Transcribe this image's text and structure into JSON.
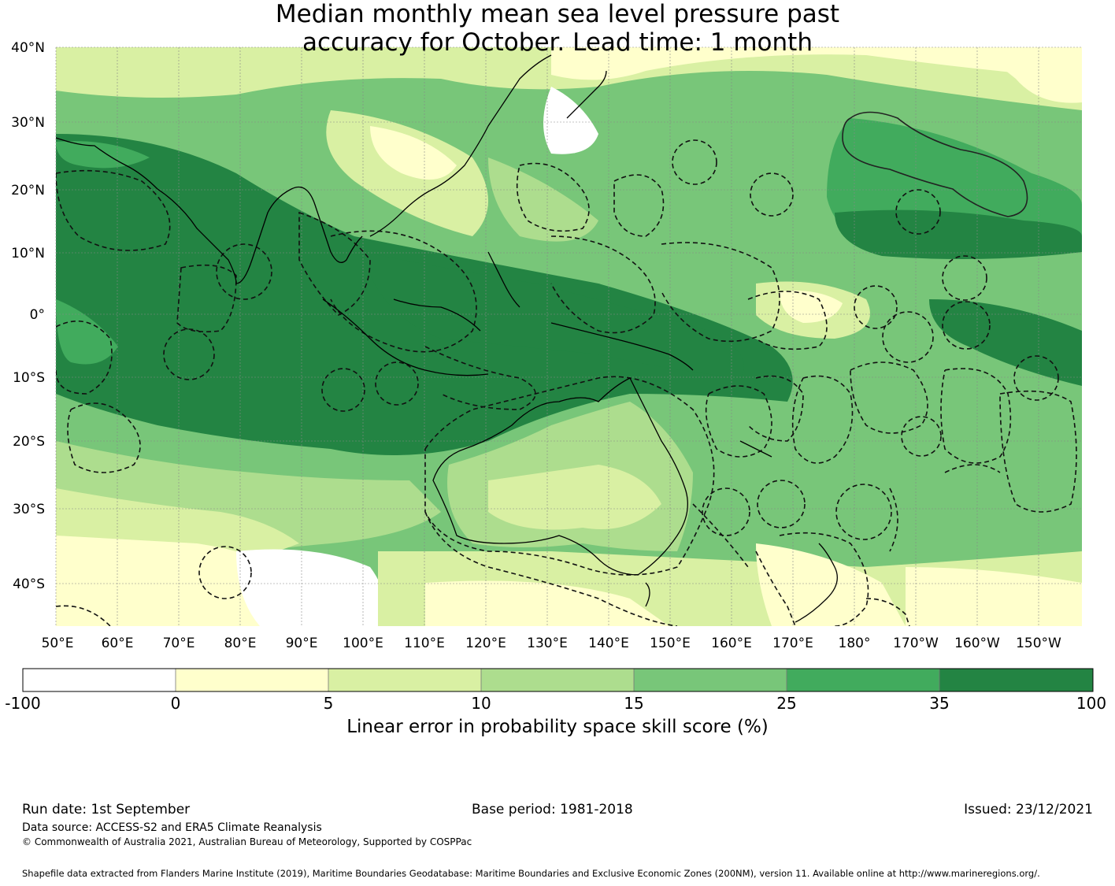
{
  "title_line1": "Median monthly mean sea level pressure past",
  "title_line2": "accuracy for October. Lead time: 1 month",
  "lat_labels": [
    "40°N",
    "30°N",
    "20°N",
    "10°N",
    "0°",
    "10°S",
    "20°S",
    "30°S",
    "40°S"
  ],
  "lon_labels": [
    "50°E",
    "60°E",
    "70°E",
    "80°E",
    "90°E",
    "100°E",
    "110°E",
    "120°E",
    "130°E",
    "140°E",
    "150°E",
    "160°E",
    "170°E",
    "180°",
    "170°W",
    "160°W",
    "150°W"
  ],
  "colorbar": {
    "ticks": [
      "-100",
      "0",
      "5",
      "10",
      "15",
      "25",
      "35",
      "100"
    ],
    "colors": [
      "#ffffff",
      "#ffffcc",
      "#d9f0a3",
      "#addd8e",
      "#78c679",
      "#41ab5d",
      "#238443"
    ],
    "label": "Linear error in probability space skill score (%)"
  },
  "footer": {
    "run_date": "Run date: 1st September",
    "base_period": "Base period: 1981-2018",
    "issued": "Issued: 23/12/2021",
    "data_source": "Data source: ACCESS-S2 and ERA5 Climate Reanalysis",
    "copyright": "© Commonwealth of Australia 2021, Australian Bureau of Meteorology, Supported by COSPPac",
    "shapefile": "Shapefile data extracted from Flanders Marine Institute (2019), Maritime Boundaries Geodatabase: Maritime Boundaries and Exclusive Economic Zones (200NM), version 11. Available online at http://www.marineregions.org/."
  }
}
